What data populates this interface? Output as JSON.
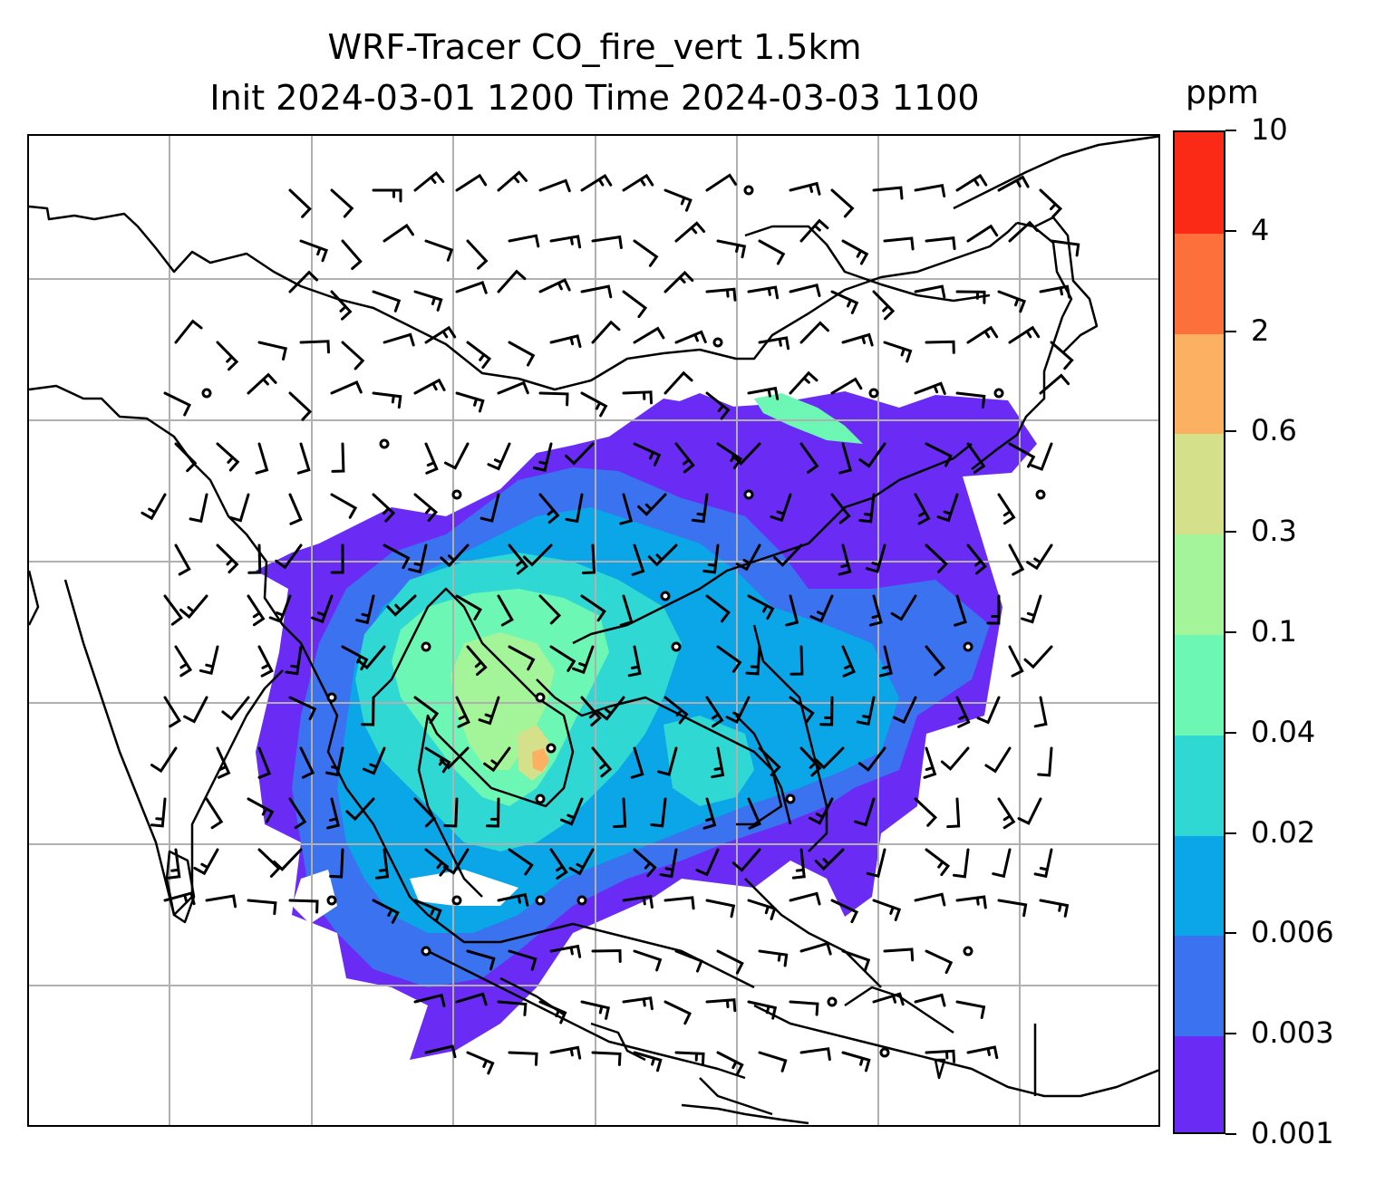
{
  "title": {
    "line1": "WRF-Tracer CO_fire_vert 1.5km",
    "line2": "Init 2024-03-01 1200 Time 2024-03-03 1100"
  },
  "colorbar": {
    "unit": "ppm",
    "levels": [
      "0.001",
      "0.003",
      "0.006",
      "0.02",
      "0.04",
      "0.1",
      "0.3",
      "0.6",
      "2",
      "4",
      "10"
    ],
    "colors": [
      "#6a2cf5",
      "#3a72f0",
      "#0aa6e8",
      "#2fd8d2",
      "#6cf7b4",
      "#a4f49a",
      "#d4e08a",
      "#fbb062",
      "#fd703b",
      "#fb2a17"
    ]
  },
  "map": {
    "gridlines": true,
    "coastline_color": "#000000",
    "grid_color": "#b0b0b0",
    "wind_barb_color": "#000000"
  }
}
